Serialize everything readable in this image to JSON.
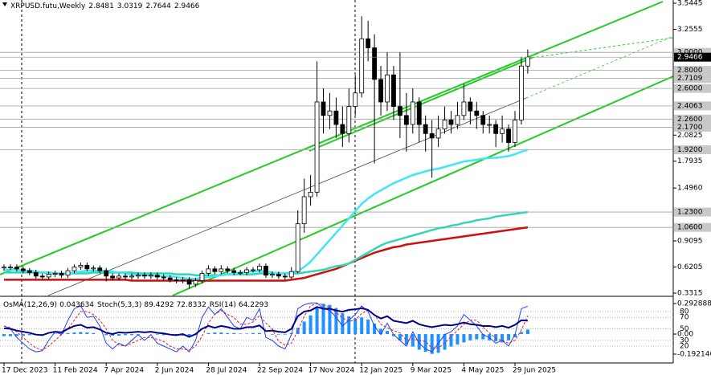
{
  "chart_data": [
    {
      "type": "candlestick",
      "title": "XRPUSD.futu,Weekly",
      "categories": [
        "17 Dec 2023",
        null,
        null,
        null,
        null,
        null,
        null,
        null,
        "11 Feb 2024",
        null,
        null,
        null,
        null,
        null,
        null,
        null,
        "7 Apr 2024",
        null,
        null,
        null,
        null,
        null,
        null,
        null,
        "2 Jun 2024",
        null,
        null,
        null,
        null,
        null,
        null,
        null,
        "28 Jul 2024",
        null,
        null,
        null,
        null,
        null,
        null,
        null,
        "22 Sep 2024",
        null,
        null,
        null,
        null,
        null,
        null,
        null,
        "17 Nov 2024",
        null,
        null,
        null,
        null,
        null,
        null,
        null,
        "12 Jan 2025",
        null,
        null,
        null,
        null,
        null,
        null,
        null,
        "9 Mar 2025",
        null,
        null,
        null,
        null,
        null,
        null,
        null,
        "4 May 2025",
        null,
        null,
        null,
        null,
        null,
        null,
        null,
        "29 Jun 2025",
        null,
        null
      ],
      "candles": {
        "open": [
          0.61,
          0.62,
          0.62,
          0.6,
          0.58,
          0.56,
          0.52,
          0.51,
          0.54,
          0.55,
          0.53,
          0.58,
          0.62,
          0.64,
          0.6,
          0.61,
          0.58,
          0.52,
          0.5,
          0.52,
          0.51,
          0.52,
          0.53,
          0.52,
          0.53,
          0.51,
          0.5,
          0.48,
          0.47,
          0.48,
          0.43,
          0.47,
          0.55,
          0.6,
          0.57,
          0.6,
          0.58,
          0.56,
          0.56,
          0.59,
          0.59,
          0.63,
          0.53,
          0.54,
          0.52,
          0.51,
          0.57,
          1.1,
          1.4,
          1.45,
          2.45,
          2.3,
          2.35,
          2.2,
          2.1,
          2.4,
          2.55,
          3.15,
          3.05,
          2.7,
          2.45,
          2.75,
          2.4,
          2.3,
          2.2,
          2.45,
          2.2,
          2.1,
          2.05,
          2.15,
          2.25,
          2.2,
          2.3,
          2.45,
          2.35,
          2.3,
          2.2,
          2.2,
          2.1,
          2.15,
          2.0,
          2.25,
          2.8481
        ],
        "high": [
          0.65,
          0.65,
          0.65,
          0.63,
          0.61,
          0.59,
          0.55,
          0.57,
          0.58,
          0.58,
          0.61,
          0.65,
          0.67,
          0.67,
          0.64,
          0.64,
          0.61,
          0.55,
          0.55,
          0.55,
          0.55,
          0.56,
          0.56,
          0.56,
          0.56,
          0.54,
          0.53,
          0.51,
          0.51,
          0.51,
          0.5,
          0.58,
          0.64,
          0.63,
          0.64,
          0.63,
          0.61,
          0.59,
          0.62,
          0.62,
          0.66,
          0.66,
          0.57,
          0.57,
          0.55,
          0.62,
          1.25,
          1.6,
          1.64,
          2.9,
          2.6,
          2.55,
          2.5,
          2.4,
          2.6,
          2.75,
          3.4,
          3.35,
          3.2,
          2.85,
          3.0,
          2.85,
          3.0,
          2.55,
          2.6,
          2.5,
          2.3,
          2.25,
          2.3,
          2.4,
          2.35,
          2.45,
          2.65,
          2.5,
          2.45,
          2.35,
          2.3,
          2.25,
          2.3,
          2.2,
          2.35,
          2.95,
          3.0319
        ],
        "low": [
          0.58,
          0.59,
          0.57,
          0.55,
          0.53,
          0.49,
          0.48,
          0.48,
          0.51,
          0.5,
          0.5,
          0.55,
          0.59,
          0.57,
          0.57,
          0.55,
          0.46,
          0.47,
          0.47,
          0.48,
          0.48,
          0.49,
          0.49,
          0.49,
          0.48,
          0.47,
          0.45,
          0.44,
          0.44,
          0.38,
          0.4,
          0.44,
          0.52,
          0.54,
          0.54,
          0.55,
          0.53,
          0.53,
          0.53,
          0.56,
          0.56,
          0.5,
          0.5,
          0.49,
          0.48,
          0.49,
          0.55,
          1.0,
          1.3,
          1.4,
          2.1,
          2.15,
          2.05,
          1.95,
          2.0,
          2.3,
          2.5,
          2.9,
          1.77,
          2.3,
          2.35,
          2.25,
          2.05,
          1.9,
          2.1,
          2.0,
          1.9,
          1.61,
          1.95,
          2.1,
          2.1,
          2.15,
          2.25,
          2.2,
          2.15,
          2.1,
          2.1,
          1.95,
          2.0,
          1.9,
          1.95,
          2.2,
          2.7644
        ],
        "close": [
          0.62,
          0.62,
          0.6,
          0.58,
          0.56,
          0.52,
          0.51,
          0.54,
          0.55,
          0.53,
          0.58,
          0.62,
          0.64,
          0.6,
          0.61,
          0.58,
          0.52,
          0.5,
          0.52,
          0.51,
          0.52,
          0.53,
          0.52,
          0.53,
          0.51,
          0.5,
          0.48,
          0.47,
          0.48,
          0.43,
          0.47,
          0.55,
          0.6,
          0.57,
          0.6,
          0.58,
          0.56,
          0.56,
          0.59,
          0.59,
          0.63,
          0.53,
          0.54,
          0.52,
          0.51,
          0.57,
          1.1,
          1.4,
          1.45,
          2.45,
          2.3,
          2.35,
          2.2,
          2.1,
          2.4,
          2.55,
          3.15,
          3.05,
          2.7,
          2.45,
          2.75,
          2.4,
          2.3,
          2.2,
          2.45,
          2.2,
          2.1,
          2.05,
          2.15,
          2.25,
          2.2,
          2.3,
          2.45,
          2.35,
          2.3,
          2.2,
          2.2,
          2.1,
          2.15,
          2.0,
          2.25,
          2.8481,
          2.9466
        ]
      },
      "up_color": "#ffffff",
      "down_color": "#000000",
      "series": [
        {
          "color": "#cc0f0f",
          "values": [
            0.48,
            0.48,
            0.48,
            0.48,
            0.48,
            0.48,
            0.48,
            0.48,
            0.48,
            0.48,
            0.48,
            0.48,
            0.48,
            0.48,
            0.48,
            0.48,
            0.48,
            0.48,
            0.48,
            0.48,
            0.47,
            0.47,
            0.47,
            0.47,
            0.47,
            0.47,
            0.47,
            0.47,
            0.47,
            0.47,
            0.47,
            0.47,
            0.47,
            0.47,
            0.47,
            0.47,
            0.47,
            0.47,
            0.47,
            0.47,
            0.47,
            0.47,
            0.47,
            0.47,
            0.47,
            0.48,
            0.49,
            0.5,
            0.52,
            0.54,
            0.56,
            0.58,
            0.6,
            0.63,
            0.66,
            0.69,
            0.72,
            0.75,
            0.78,
            0.8,
            0.82,
            0.84,
            0.85,
            0.87,
            0.88,
            0.89,
            0.9,
            0.91,
            0.92,
            0.93,
            0.94,
            0.95,
            0.96,
            0.97,
            0.98,
            0.99,
            1.0,
            1.01,
            1.02,
            1.03,
            1.04,
            1.05,
            1.06
          ]
        },
        {
          "color": "#2fd8b0",
          "values": [
            0.56,
            0.56,
            0.56,
            0.56,
            0.56,
            0.56,
            0.56,
            0.56,
            0.55,
            0.55,
            0.55,
            0.55,
            0.55,
            0.55,
            0.56,
            0.56,
            0.56,
            0.56,
            0.56,
            0.56,
            0.56,
            0.55,
            0.55,
            0.55,
            0.55,
            0.55,
            0.55,
            0.54,
            0.54,
            0.54,
            0.53,
            0.53,
            0.53,
            0.53,
            0.53,
            0.54,
            0.54,
            0.54,
            0.54,
            0.54,
            0.55,
            0.55,
            0.55,
            0.55,
            0.55,
            0.55,
            0.55,
            0.56,
            0.57,
            0.58,
            0.59,
            0.61,
            0.63,
            0.64,
            0.66,
            0.7,
            0.74,
            0.78,
            0.82,
            0.86,
            0.89,
            0.91,
            0.93,
            0.95,
            0.97,
            0.99,
            1.01,
            1.03,
            1.05,
            1.06,
            1.08,
            1.09,
            1.11,
            1.12,
            1.14,
            1.15,
            1.16,
            1.18,
            1.19,
            1.2,
            1.21,
            1.22,
            1.23
          ]
        },
        {
          "color": "#40e6f5",
          "values": [
            0.59,
            0.59,
            0.59,
            0.58,
            0.58,
            0.57,
            0.56,
            0.55,
            0.55,
            0.55,
            0.55,
            0.56,
            0.57,
            0.58,
            0.58,
            0.58,
            0.58,
            0.57,
            0.56,
            0.55,
            0.54,
            0.53,
            0.53,
            0.53,
            0.52,
            0.52,
            0.52,
            0.51,
            0.5,
            0.49,
            0.49,
            0.5,
            0.51,
            0.52,
            0.53,
            0.54,
            0.55,
            0.56,
            0.57,
            0.57,
            0.58,
            0.57,
            0.56,
            0.55,
            0.55,
            0.56,
            0.58,
            0.62,
            0.68,
            0.76,
            0.84,
            0.92,
            1.0,
            1.08,
            1.16,
            1.24,
            1.32,
            1.38,
            1.43,
            1.47,
            1.51,
            1.55,
            1.58,
            1.61,
            1.64,
            1.66,
            1.68,
            1.7,
            1.71,
            1.73,
            1.75,
            1.77,
            1.79,
            1.8,
            1.81,
            1.82,
            1.83,
            1.83,
            1.84,
            1.85,
            1.87,
            1.9,
            1.92
          ]
        }
      ],
      "ylim": [
        0.305,
        3.58
      ],
      "yticks": [
        3.5445,
        3.2555,
        2.0825,
        1.7935,
        {
          "value": 1.496,
          "label": "1.4960"
        },
        0.9095,
        0.6205,
        0.3315
      ],
      "levels": [
        {
          "value": 3,
          "label": "3.0000"
        },
        {
          "value": 2.8,
          "label": "2.8000"
        },
        2.7109,
        {
          "value": 2.6,
          "label": "2.6000"
        },
        2.4063,
        {
          "value": 2.26,
          "label": "2.2600"
        },
        {
          "value": 2.17,
          "label": "2.1700"
        },
        {
          "value": 1.92,
          "label": "1.9200"
        },
        {
          "value": 1.23,
          "label": "1.2300"
        },
        {
          "value": 1.06,
          "label": "1.0600"
        }
      ]
    },
    {
      "type": "oscillator",
      "series": [
        {
          "name": "OsMA(12,26,9)",
          "color": "#1e90ff",
          "values": [
            -0.02,
            -0.02,
            -0.02,
            -0.015,
            -0.01,
            -0.01,
            -0.005,
            0.0,
            0.005,
            0.01,
            0.01,
            0.015,
            0.02,
            0.015,
            0.01,
            0.0,
            -0.01,
            -0.015,
            -0.015,
            -0.01,
            -0.01,
            -0.005,
            0.0,
            0.0,
            -0.005,
            -0.01,
            -0.01,
            -0.015,
            -0.015,
            -0.02,
            -0.01,
            0.0,
            0.01,
            0.015,
            0.015,
            0.01,
            0.01,
            0.005,
            0.005,
            0.01,
            0.01,
            0.0,
            -0.005,
            -0.005,
            -0.005,
            0.01,
            0.06,
            0.12,
            0.18,
            0.26,
            0.29,
            0.28,
            0.25,
            0.2,
            0.17,
            0.15,
            0.16,
            0.14,
            0.1,
            0.05,
            0.03,
            -0.02,
            -0.06,
            -0.1,
            -0.12,
            -0.15,
            -0.17,
            -0.19,
            -0.18,
            -0.15,
            -0.12,
            -0.1,
            -0.08,
            -0.06,
            -0.05,
            -0.05,
            -0.06,
            -0.07,
            -0.08,
            -0.06,
            -0.03,
            0.02,
            0.043634
          ]
        },
        {
          "name": "Stoch(5,3,3)",
          "color": "#2040ff",
          "axis": "y2",
          "values": [
            55,
            50,
            35,
            25,
            15,
            10,
            12,
            30,
            45,
            40,
            65,
            85,
            90,
            70,
            72,
            55,
            25,
            15,
            25,
            20,
            30,
            40,
            30,
            40,
            25,
            20,
            15,
            10,
            20,
            10,
            30,
            70,
            88,
            75,
            85,
            70,
            55,
            50,
            70,
            65,
            85,
            35,
            30,
            20,
            15,
            40,
            85,
            92,
            95,
            95,
            85,
            82,
            70,
            55,
            65,
            75,
            90,
            80,
            55,
            40,
            60,
            40,
            30,
            20,
            45,
            25,
            15,
            10,
            25,
            40,
            45,
            55,
            75,
            65,
            55,
            40,
            35,
            25,
            30,
            20,
            40,
            85,
            89.4292
          ]
        },
        {
          "color": "#e02020",
          "axis": "y2",
          "values": [
            55,
            52,
            45,
            35,
            25,
            17,
            13,
            20,
            30,
            40,
            50,
            65,
            80,
            80,
            75,
            65,
            50,
            30,
            22,
            20,
            25,
            30,
            35,
            35,
            32,
            28,
            20,
            15,
            15,
            13,
            20,
            37,
            60,
            75,
            82,
            75,
            70,
            58,
            58,
            62,
            73,
            60,
            50,
            28,
            22,
            25,
            47,
            72,
            90,
            94,
            92,
            87,
            79,
            69,
            63,
            65,
            77,
            82,
            75,
            58,
            52,
            47,
            43,
            30,
            32,
            30,
            28,
            17,
            17,
            25,
            37,
            47,
            58,
            65,
            65,
            53,
            43,
            33,
            30,
            25,
            30,
            48,
            72.8332
          ]
        },
        {
          "name": "RSI(14)",
          "color": "#00008b",
          "axis": "y2",
          "values": [
            51,
            50,
            47,
            45,
            43,
            40,
            39,
            43,
            45,
            44,
            50,
            55,
            57,
            52,
            53,
            49,
            43,
            41,
            44,
            43,
            44,
            45,
            44,
            45,
            43,
            42,
            40,
            39,
            41,
            36,
            41,
            50,
            55,
            52,
            55,
            53,
            50,
            50,
            53,
            53,
            56,
            46,
            47,
            45,
            44,
            50,
            72,
            80,
            82,
            88,
            85,
            85,
            82,
            80,
            83,
            84,
            86,
            83,
            74,
            68,
            72,
            64,
            62,
            60,
            64,
            58,
            55,
            53,
            55,
            57,
            56,
            58,
            61,
            58,
            57,
            55,
            55,
            53,
            55,
            52,
            57,
            65,
            64.2293
          ]
        }
      ],
      "ylim": [
        -0.2768,
        0.3545
      ],
      "yticks": [
        0.292888,
        {
          "value": 0,
          "label": "0.00"
        },
        -0.192146
      ],
      "y2lim": [
        -9.3,
        105.2
      ],
      "y2ticks": [
        80,
        70,
        50,
        30,
        20
      ]
    }
  ]
}
